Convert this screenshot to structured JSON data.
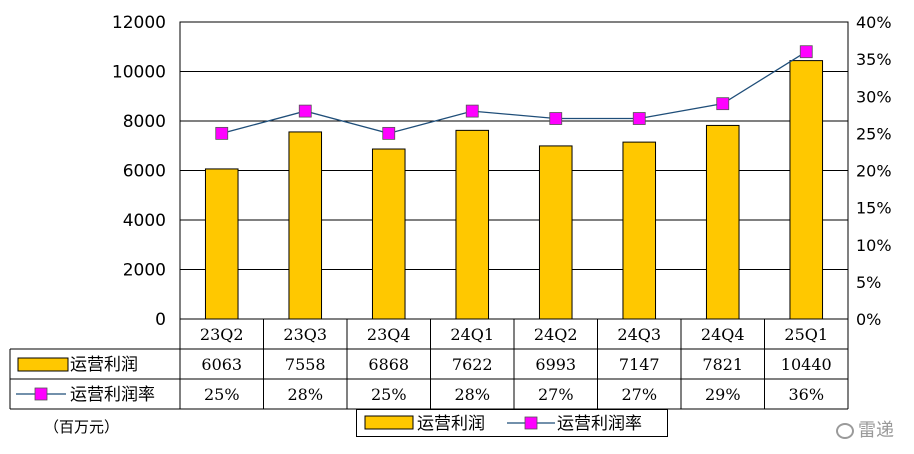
{
  "chart_data": {
    "type": "bar",
    "categories": [
      "23Q2",
      "23Q3",
      "23Q4",
      "24Q1",
      "24Q2",
      "24Q3",
      "24Q4",
      "25Q1"
    ],
    "series": [
      {
        "name": "运营利润",
        "type": "bar",
        "axis": "left",
        "values": [
          6063,
          7558,
          6868,
          7622,
          6993,
          7147,
          7821,
          10440
        ],
        "color": "#FFC800"
      },
      {
        "name": "运营利润率",
        "type": "line",
        "axis": "right",
        "values": [
          25,
          28,
          25,
          28,
          27,
          27,
          29,
          36
        ],
        "value_labels": [
          "25%",
          "28%",
          "25%",
          "28%",
          "27%",
          "27%",
          "29%",
          "36%"
        ],
        "line_color": "#1F4E79",
        "marker_color": "#FF00FF"
      }
    ],
    "y_left": {
      "range": [
        0,
        12000
      ],
      "ticks": [
        "0",
        "2000",
        "4000",
        "6000",
        "8000",
        "10000",
        "12000"
      ]
    },
    "y_right": {
      "range": [
        0,
        40
      ],
      "ticks": [
        "0%",
        "5%",
        "10%",
        "15%",
        "20%",
        "25%",
        "30%",
        "35%",
        "40%"
      ]
    },
    "data_table": {
      "rows": [
        {
          "label": "运营利润",
          "values": [
            "6063",
            "7558",
            "6868",
            "7622",
            "6993",
            "7147",
            "7821",
            "10440"
          ]
        },
        {
          "label": "运营利润率",
          "values": [
            "25%",
            "28%",
            "25%",
            "28%",
            "27%",
            "27%",
            "29%",
            "36%"
          ]
        }
      ]
    },
    "legend": {
      "placement": "bottom",
      "entries": [
        "运营利润",
        "运营利润率"
      ]
    },
    "grid": true
  },
  "unit_label": "（百万元）",
  "watermark": "雷递"
}
